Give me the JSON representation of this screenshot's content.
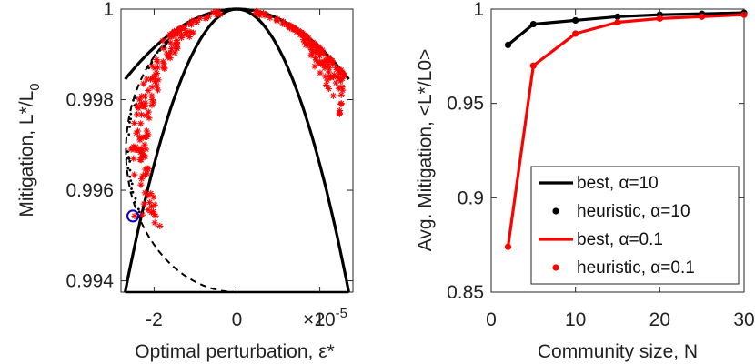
{
  "chart_data": [
    {
      "type": "scatter",
      "xlabel": "Optimal perturbation, ε*",
      "ylabel": "Mitigation, L*/L",
      "ylabel_sub": "0",
      "x_exponent": "×10",
      "x_exponent_power": "-5",
      "xlim": [
        -2.8,
        2.8
      ],
      "ylim": [
        0.99375,
        1.0
      ],
      "xticks": [
        -2,
        0,
        2
      ],
      "xtick_labels": [
        "-2",
        "0",
        "2"
      ],
      "yticks": [
        0.994,
        0.996,
        0.998,
        1
      ],
      "ytick_labels": [
        "0.994",
        "0.996",
        "0.998",
        "1"
      ],
      "curves": {
        "outer_parabola": {
          "color": "#000000",
          "style": "solid",
          "x": [
            -2.7,
            2.7
          ],
          "y_at_ends": 0.99845,
          "y_at_zero": 1.0
        },
        "inner_parabola": {
          "color": "#000000",
          "style": "solid",
          "x": [
            -2.7,
            2.7
          ],
          "y_at_ends": 0.99375,
          "y_at_zero": 1.0
        },
        "bottom_line": {
          "color": "#000000",
          "style": "solid",
          "y": 0.99375
        },
        "dashed_arc": {
          "color": "#000000",
          "style": "dashed"
        }
      },
      "scatter_series": [
        {
          "color": "#ff0000",
          "marker": "*"
        },
        {
          "color": "#000000",
          "marker": "dot"
        }
      ],
      "highlight": {
        "x": -2.47,
        "y": 0.99543,
        "color": "#0000cc",
        "marker": "circle"
      }
    },
    {
      "type": "line",
      "xlabel": "Community size, N",
      "ylabel": "Avg. Mitigation, <L*/L0>",
      "xlim": [
        0,
        30
      ],
      "ylim": [
        0.85,
        1.0
      ],
      "xticks": [
        0,
        10,
        20,
        30
      ],
      "xtick_labels": [
        "0",
        "10",
        "20",
        "30"
      ],
      "yticks": [
        0.85,
        0.9,
        0.95,
        1
      ],
      "ytick_labels": [
        "0.85",
        "0.9",
        "0.95",
        "1"
      ],
      "legend_position": "lower-right",
      "x": [
        2,
        5,
        10,
        15,
        20,
        25,
        30
      ],
      "series": [
        {
          "name": "best, α=10",
          "color": "#000000",
          "style": "line",
          "values": [
            0.981,
            0.992,
            0.994,
            0.996,
            0.997,
            0.9975,
            0.998
          ]
        },
        {
          "name": "heuristic, α=10",
          "color": "#000000",
          "style": "marker",
          "values": [
            0.981,
            0.992,
            0.994,
            0.996,
            0.997,
            0.9975,
            0.998
          ]
        },
        {
          "name": "best, α=0.1",
          "color": "#ff0000",
          "style": "line",
          "values": [
            0.874,
            0.97,
            0.987,
            0.993,
            0.995,
            0.996,
            0.997
          ]
        },
        {
          "name": "heuristic, α=0.1",
          "color": "#ff0000",
          "style": "marker",
          "values": [
            0.874,
            0.97,
            0.987,
            0.993,
            0.995,
            0.996,
            0.997
          ]
        }
      ]
    }
  ]
}
